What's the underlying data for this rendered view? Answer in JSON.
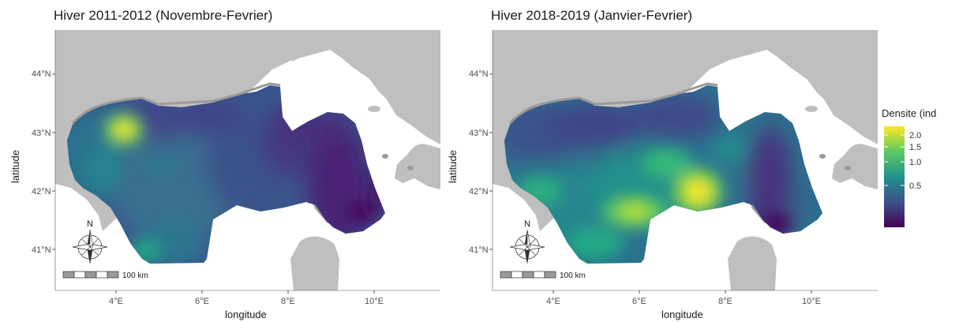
{
  "panels": [
    {
      "title": "Hiver 2011-2012 (Novembre-Fevrier)"
    },
    {
      "title": "Hiver 2018-2019 (Janvier-Fevrier)"
    }
  ],
  "axes": {
    "xlabel": "longitude",
    "ylabel": "latitude",
    "x_ticks": [
      "4°E",
      "6°E",
      "8°E",
      "10°E"
    ],
    "y_ticks": [
      "44°N",
      "43°N",
      "42°N",
      "41°N"
    ]
  },
  "scale_bar": {
    "label": "100 km"
  },
  "north_arrow": {
    "label": "N"
  },
  "legend": {
    "title": "Densite (ind",
    "ticks": [
      "2.0",
      "1.5",
      "1.0",
      "0.5"
    ],
    "colors": [
      "#fde725",
      "#5ec962",
      "#21918c",
      "#3b528b",
      "#440154"
    ]
  },
  "colors": {
    "land": "#bfbfbf",
    "coast": "#9a9a9a",
    "sea_bg": "#ffffff"
  }
}
